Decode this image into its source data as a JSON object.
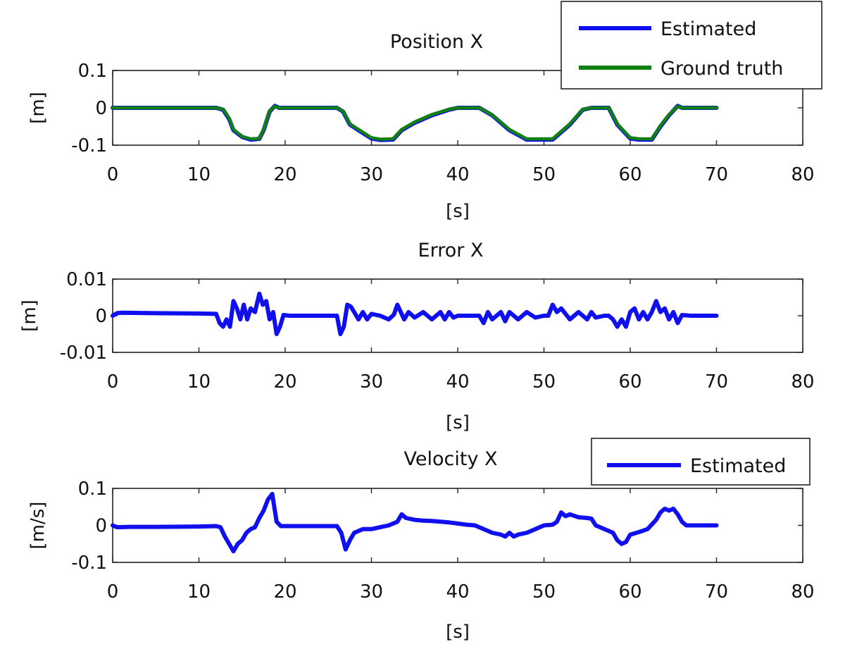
{
  "colors": {
    "estimated": "#1010ee",
    "ground_truth": "#108010",
    "axis": "#222222"
  },
  "chart_data": [
    {
      "type": "line",
      "title": "Position X",
      "xlabel": "[s]",
      "ylabel": "[m]",
      "xlim": [
        0,
        80
      ],
      "ylim": [
        -0.1,
        0.1
      ],
      "xticks": [
        0,
        10,
        20,
        30,
        40,
        50,
        60,
        70,
        80
      ],
      "yticks": [
        -0.1,
        0,
        0.1
      ],
      "ytick_labels": [
        "-0.1",
        "0",
        "0.1"
      ],
      "grid": false,
      "legend": {
        "placement": "top-right",
        "entries": [
          "Estimated",
          "Ground truth"
        ]
      },
      "series": [
        {
          "name": "Estimated",
          "color": "#1010ee",
          "x": [
            0,
            12.0,
            12.8,
            13.5,
            14.0,
            15.0,
            16.0,
            17.0,
            17.5,
            18.2,
            18.8,
            19.3,
            26.0,
            26.7,
            27.5,
            28.5,
            30.0,
            31.0,
            32.5,
            33.5,
            35.0,
            37.0,
            39.0,
            40.0,
            42.5,
            44.0,
            46.0,
            48.0,
            51.0,
            53.0,
            54.5,
            55.5,
            57.5,
            58.5,
            60.0,
            61.0,
            62.5,
            63.5,
            64.5,
            65.5,
            66.0,
            70.0
          ],
          "y": [
            0,
            0,
            -0.005,
            -0.03,
            -0.06,
            -0.078,
            -0.085,
            -0.083,
            -0.06,
            -0.01,
            0.005,
            0,
            0,
            -0.01,
            -0.045,
            -0.06,
            -0.082,
            -0.086,
            -0.085,
            -0.06,
            -0.04,
            -0.02,
            -0.005,
            0,
            0,
            -0.02,
            -0.06,
            -0.085,
            -0.085,
            -0.045,
            -0.005,
            0,
            0,
            -0.045,
            -0.082,
            -0.085,
            -0.085,
            -0.05,
            -0.02,
            0.005,
            0,
            0
          ]
        },
        {
          "name": "Ground truth",
          "color": "#108010",
          "x": [
            0,
            12.0,
            12.8,
            13.5,
            14.0,
            15.0,
            16.0,
            17.0,
            17.5,
            18.2,
            18.8,
            19.3,
            26.0,
            26.7,
            27.5,
            28.5,
            30.0,
            31.0,
            32.5,
            33.5,
            35.0,
            37.0,
            39.0,
            40.0,
            42.5,
            44.0,
            46.0,
            48.0,
            51.0,
            53.0,
            54.5,
            55.5,
            57.5,
            58.5,
            60.0,
            61.0,
            62.5,
            63.5,
            64.5,
            65.5,
            66.0,
            70.0
          ],
          "y": [
            0,
            0,
            -0.004,
            -0.028,
            -0.058,
            -0.077,
            -0.083,
            -0.082,
            -0.058,
            -0.008,
            0.004,
            0,
            0,
            -0.009,
            -0.043,
            -0.058,
            -0.08,
            -0.084,
            -0.083,
            -0.058,
            -0.038,
            -0.018,
            -0.004,
            0,
            0,
            -0.019,
            -0.058,
            -0.083,
            -0.083,
            -0.043,
            -0.004,
            0,
            0,
            -0.043,
            -0.08,
            -0.083,
            -0.083,
            -0.048,
            -0.018,
            0.004,
            0,
            0
          ]
        }
      ]
    },
    {
      "type": "line",
      "title": "Error X",
      "xlabel": "[s]",
      "ylabel": "[m]",
      "xlim": [
        0,
        80
      ],
      "ylim": [
        -0.01,
        0.01
      ],
      "xticks": [
        0,
        10,
        20,
        30,
        40,
        50,
        60,
        70,
        80
      ],
      "yticks": [
        -0.01,
        0,
        0.01
      ],
      "ytick_labels": [
        "-0.01",
        "0",
        "0.01"
      ],
      "grid": false,
      "series": [
        {
          "name": "Estimated",
          "color": "#1010ee",
          "x": [
            0,
            0.5,
            1.0,
            5,
            10,
            12.0,
            12.4,
            12.8,
            13.2,
            13.6,
            14.0,
            14.4,
            14.8,
            15.2,
            15.6,
            16.0,
            16.5,
            17.0,
            17.4,
            17.8,
            18.2,
            18.6,
            19.0,
            19.4,
            19.8,
            20.5,
            24,
            26.0,
            26.4,
            26.8,
            27.2,
            27.6,
            28.0,
            28.5,
            29.0,
            29.5,
            30.0,
            31.0,
            32.0,
            32.6,
            33.0,
            33.4,
            33.8,
            34.3,
            35.0,
            36.0,
            37.0,
            38.0,
            38.5,
            39.0,
            39.5,
            40.0,
            41.5,
            42.5,
            43.0,
            43.5,
            44.0,
            45.0,
            45.5,
            46.0,
            47.0,
            48.0,
            49.0,
            50.0,
            50.5,
            51.0,
            51.5,
            52.0,
            53.0,
            54.0,
            55.0,
            55.5,
            56.0,
            57.0,
            57.5,
            58.0,
            58.5,
            59.0,
            59.5,
            60.0,
            60.5,
            61.0,
            61.5,
            62.0,
            62.5,
            63.0,
            63.5,
            64.0,
            64.5,
            65.0,
            65.5,
            66.0,
            67.0,
            70.0
          ],
          "y": [
            0,
            0.0007,
            0.0008,
            0.0007,
            0.0006,
            0.0005,
            -0.002,
            -0.003,
            -0.001,
            -0.003,
            0.004,
            0.002,
            -0.001,
            0.003,
            -0.001,
            0.002,
            0.001,
            0.006,
            0.003,
            0.004,
            -0.001,
            0.001,
            -0.005,
            -0.003,
            0.0002,
            0,
            0,
            0,
            -0.005,
            -0.003,
            0.003,
            0.0025,
            0.001,
            -0.001,
            0.001,
            -0.001,
            0.0005,
            0,
            -0.001,
            0.0003,
            0.003,
            0.001,
            -0.001,
            0.001,
            -0.0005,
            0.001,
            -0.001,
            0.001,
            -0.001,
            0.001,
            -0.0005,
            0,
            0,
            0,
            -0.002,
            0.001,
            -0.001,
            0.001,
            -0.0015,
            0.001,
            -0.001,
            0.001,
            -0.0005,
            0,
            0,
            0.003,
            0.001,
            0.002,
            -0.001,
            0.001,
            -0.001,
            0.001,
            -0.0005,
            0,
            0,
            -0.001,
            -0.003,
            -0.001,
            -0.003,
            0.001,
            0.002,
            -0.001,
            0.001,
            -0.001,
            0.001,
            0.004,
            0.001,
            0.002,
            -0.001,
            0.001,
            -0.002,
            0.0002,
            0,
            0
          ]
        }
      ]
    },
    {
      "type": "line",
      "title": "Velocity X",
      "xlabel": "[s]",
      "ylabel": "[m/s]",
      "xlim": [
        0,
        80
      ],
      "ylim": [
        -0.1,
        0.1
      ],
      "xticks": [
        0,
        10,
        20,
        30,
        40,
        50,
        60,
        70,
        80
      ],
      "yticks": [
        -0.1,
        0,
        0.1
      ],
      "ytick_labels": [
        "-0.1",
        "0",
        "0.1"
      ],
      "grid": false,
      "legend": {
        "placement": "top-right",
        "entries": [
          "Estimated"
        ]
      },
      "series": [
        {
          "name": "Estimated",
          "color": "#1010ee",
          "x": [
            0,
            0.5,
            2,
            5,
            10,
            12.0,
            12.5,
            13.0,
            13.5,
            14.0,
            14.5,
            15.0,
            15.5,
            16.0,
            16.5,
            17.0,
            17.5,
            18.0,
            18.5,
            19.0,
            19.5,
            20.0,
            24,
            26.0,
            26.5,
            27.0,
            27.5,
            28.0,
            29.0,
            30.0,
            31.0,
            32.0,
            33.0,
            33.5,
            34.0,
            35.0,
            36.0,
            37.0,
            38.0,
            39.0,
            40.0,
            41.0,
            42.0,
            43.0,
            44.0,
            45.0,
            45.5,
            46.0,
            46.5,
            47.0,
            48.0,
            49.0,
            50.0,
            51.0,
            51.5,
            52.0,
            52.5,
            53.0,
            54.0,
            55.0,
            55.5,
            56.0,
            57.0,
            58.0,
            58.5,
            59.0,
            59.5,
            60.0,
            61.0,
            62.0,
            63.0,
            63.5,
            64.0,
            64.5,
            65.0,
            65.5,
            66.0,
            66.5,
            67.0,
            70.0
          ],
          "y": [
            0,
            -0.005,
            -0.004,
            -0.004,
            -0.003,
            -0.002,
            -0.005,
            -0.03,
            -0.05,
            -0.07,
            -0.05,
            -0.04,
            -0.02,
            -0.01,
            -0.005,
            0.02,
            0.04,
            0.07,
            0.085,
            0.01,
            -0.002,
            -0.002,
            -0.002,
            -0.002,
            -0.02,
            -0.065,
            -0.04,
            -0.02,
            -0.01,
            -0.01,
            -0.005,
            0.0,
            0.01,
            0.03,
            0.02,
            0.015,
            0.013,
            0.012,
            0.01,
            0.008,
            0.005,
            0.002,
            0.0,
            -0.01,
            -0.02,
            -0.025,
            -0.03,
            -0.02,
            -0.03,
            -0.025,
            -0.02,
            -0.01,
            0.0,
            0.002,
            0.01,
            0.035,
            0.025,
            0.03,
            0.022,
            0.02,
            0.018,
            0.0,
            -0.01,
            -0.02,
            -0.04,
            -0.05,
            -0.045,
            -0.025,
            -0.018,
            -0.01,
            0.015,
            0.035,
            0.045,
            0.04,
            0.045,
            0.03,
            0.01,
            0.0,
            0.0,
            0.0
          ]
        }
      ]
    }
  ]
}
